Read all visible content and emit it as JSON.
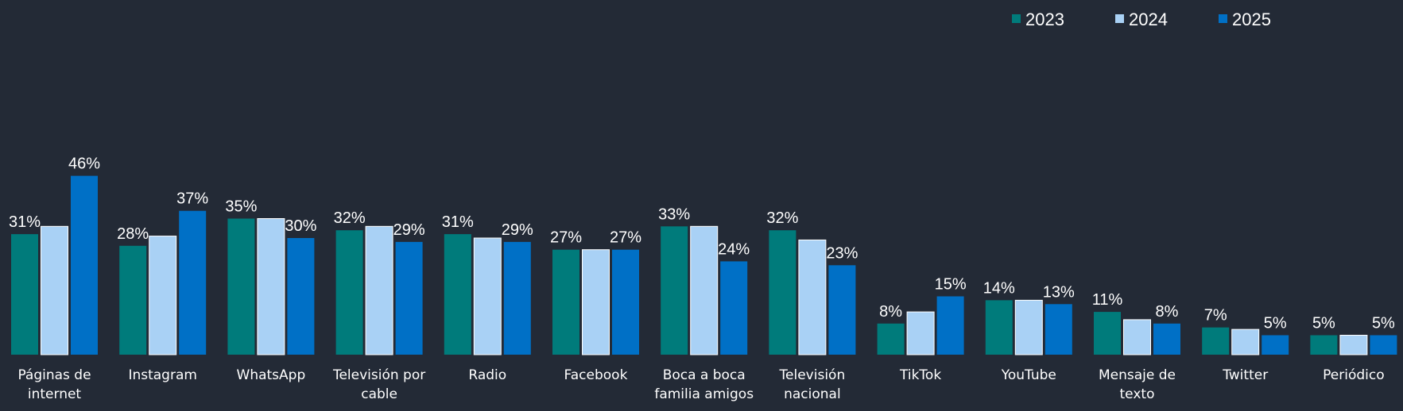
{
  "chart_data": {
    "type": "bar",
    "title": "",
    "xlabel": "",
    "ylabel": "",
    "ylim": [
      0,
      50
    ],
    "grid": false,
    "legend_position": "top-right",
    "categories": [
      [
        "Páginas de",
        "internet"
      ],
      [
        "Instagram"
      ],
      [
        "WhatsApp"
      ],
      [
        "Televisión por",
        "cable"
      ],
      [
        "Radio"
      ],
      [
        "Facebook"
      ],
      [
        "Boca a boca",
        "familia amigos"
      ],
      [
        "Televisión",
        "nacional"
      ],
      [
        "TikTok"
      ],
      [
        "YouTube"
      ],
      [
        "Mensaje de",
        "texto"
      ],
      [
        "Twitter"
      ],
      [
        "Periódico"
      ]
    ],
    "series": [
      {
        "name": "2023",
        "color": "#007b7b",
        "values": [
          31,
          28,
          35,
          32,
          31,
          27,
          33,
          32,
          8,
          14,
          11,
          7,
          5
        ],
        "labels": [
          "31%",
          "28%",
          "35%",
          "32%",
          "31%",
          "27%",
          "33%",
          "32%",
          "8%",
          "14%",
          "11%",
          "7%",
          "5%"
        ]
      },
      {
        "name": "2024",
        "color": "#a9d1f5",
        "values": [
          33,
          30.5,
          35,
          33,
          30,
          27,
          33,
          29.5,
          11,
          14,
          9,
          6.5,
          5
        ],
        "labels": [
          "",
          "",
          "",
          "",
          "",
          "",
          "",
          "",
          "",
          "",
          "",
          "",
          ""
        ]
      },
      {
        "name": "2025",
        "color": "#0070c6",
        "values": [
          46,
          37,
          30,
          29,
          29,
          27,
          24,
          23,
          15,
          13,
          8,
          5,
          5
        ],
        "labels": [
          "46%",
          "37%",
          "30%",
          "29%",
          "29%",
          "27%",
          "24%",
          "23%",
          "15%",
          "13%",
          "8%",
          "5%",
          "5%"
        ]
      }
    ]
  }
}
